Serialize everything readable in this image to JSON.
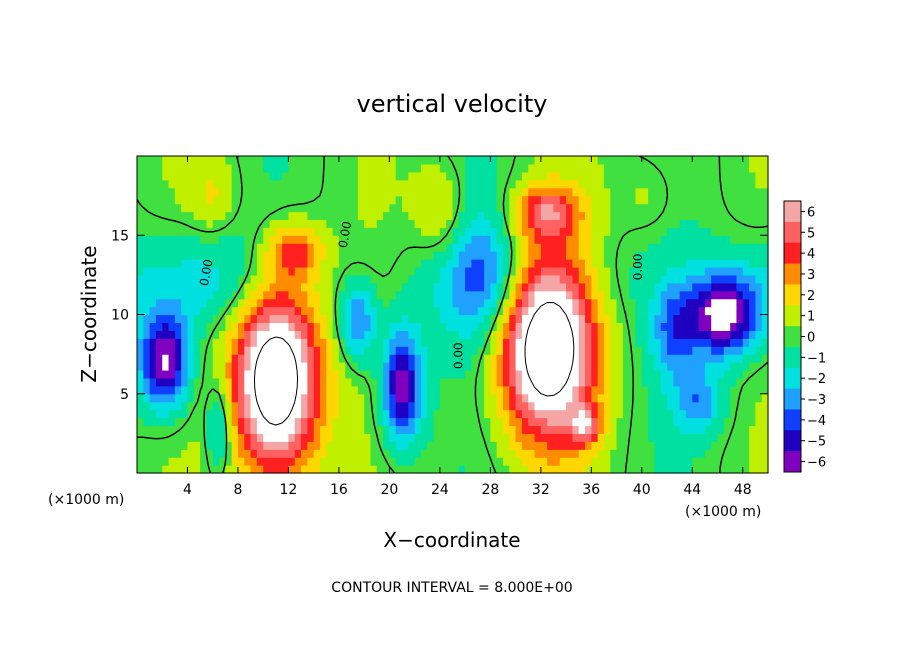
{
  "chart_data": {
    "type": "heatmap",
    "title": "vertical velocity",
    "xlabel": "X−coordinate",
    "ylabel": "Z−coordinate",
    "x_unit_left": "(×1000 m)",
    "x_unit_right": "(×1000 m)",
    "footer": "CONTOUR INTERVAL = 8.000E+00",
    "xlim": [
      0,
      50
    ],
    "ylim": [
      0,
      20
    ],
    "x_ticks": [
      4,
      8,
      12,
      16,
      20,
      24,
      28,
      32,
      36,
      40,
      44,
      48
    ],
    "y_ticks": [
      5,
      10,
      15
    ],
    "colorbar": {
      "min": -6,
      "max": 6,
      "ticks": [
        "6",
        "5",
        "4",
        "3",
        "2",
        "1",
        "0",
        "−1",
        "−2",
        "−3",
        "−4",
        "−5",
        "−6"
      ],
      "colors": [
        "#f4a6a6",
        "#ff6060",
        "#ff2020",
        "#ff8c00",
        "#ffd700",
        "#c0f000",
        "#40e040",
        "#00e0a0",
        "#00e0e0",
        "#20a0ff",
        "#1040ff",
        "#2000c0",
        "#8000c0"
      ]
    },
    "contour_labels": [
      "0.00",
      "0.00",
      "0.00",
      "0.00"
    ],
    "updrafts": [
      {
        "x": 2.2,
        "z": 7.0,
        "sx": 2.0,
        "sz": 3.0,
        "w": -7
      },
      {
        "x": 11.0,
        "z": 6.0,
        "sx": 3.4,
        "sz": 6.0,
        "w": 11
      },
      {
        "x": 12.5,
        "z": 14.0,
        "sx": 2.2,
        "sz": 1.8,
        "w": 4
      },
      {
        "x": 21.0,
        "z": 5.5,
        "sx": 1.6,
        "sz": 3.5,
        "w": -6.5
      },
      {
        "x": 27.5,
        "z": 12.5,
        "sx": 2.5,
        "sz": 4.5,
        "w": -2
      },
      {
        "x": 32.5,
        "z": 8.5,
        "sx": 3.7,
        "sz": 6.0,
        "w": 11
      },
      {
        "x": 32.5,
        "z": 16.5,
        "sx": 2.5,
        "sz": 1.6,
        "w": 4
      },
      {
        "x": 35.5,
        "z": 3.0,
        "sx": 1.2,
        "sz": 1.2,
        "w": 4
      },
      {
        "x": 46.5,
        "z": 10.0,
        "sx": 2.8,
        "sz": 2.6,
        "w": -7
      },
      {
        "x": 17.5,
        "z": 9.5,
        "sx": 1.5,
        "sz": 2.5,
        "w": -4
      },
      {
        "x": 6.5,
        "z": 3.0,
        "sx": 1.0,
        "sz": 3.0,
        "w": -3
      },
      {
        "x": 42.5,
        "z": 9.0,
        "sx": 1.8,
        "sz": 3.0,
        "w": -3
      },
      {
        "x": 44.5,
        "z": 4.5,
        "sx": 2.0,
        "sz": 2.0,
        "w": -3
      },
      {
        "x": 24.0,
        "z": 16.5,
        "sx": 2.0,
        "sz": 3.0,
        "w": 2
      },
      {
        "x": 6.0,
        "z": 17.5,
        "sx": 1.8,
        "sz": 2.5,
        "w": 1.5
      },
      {
        "x": 40.5,
        "z": 17.5,
        "sx": 2.2,
        "sz": 2.5,
        "w": 1
      }
    ]
  }
}
